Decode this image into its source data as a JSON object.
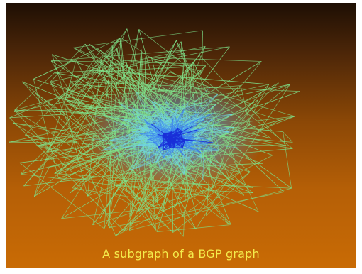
{
  "slide": {
    "caption": "A subgraph of a BGP graph",
    "background_top": "#1e0f04",
    "background_bottom": "#c96b05",
    "caption_color": "#f4ec4c"
  },
  "graph": {
    "outer_edge_color": "#7fe28a",
    "middle_edge_color": "#6fd6e6",
    "inner_edge_color": "#3a7ff0",
    "core_edge_color": "#1a2fd8"
  }
}
